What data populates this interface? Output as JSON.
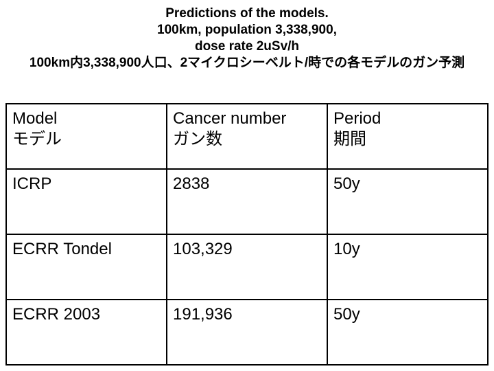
{
  "header": {
    "title_lines": [
      "Predictions of the models.",
      "100km, population 3,338,900,",
      "dose rate 2uSv/h"
    ],
    "title_ja": "100km内3,338,900人口、2マイクロシーベルト/時での各モデルのガン予測"
  },
  "table": {
    "columns": [
      {
        "en": "Model",
        "ja": "モデル"
      },
      {
        "en": "Cancer number",
        "ja": "ガン数"
      },
      {
        "en": "Period",
        "ja": "期間"
      }
    ],
    "rows": [
      [
        "ICRP",
        "2838",
        "50y"
      ],
      [
        "ECRR Tondel",
        "103,329",
        "10y"
      ],
      [
        "ECRR 2003",
        "191,936",
        "50y"
      ]
    ]
  }
}
